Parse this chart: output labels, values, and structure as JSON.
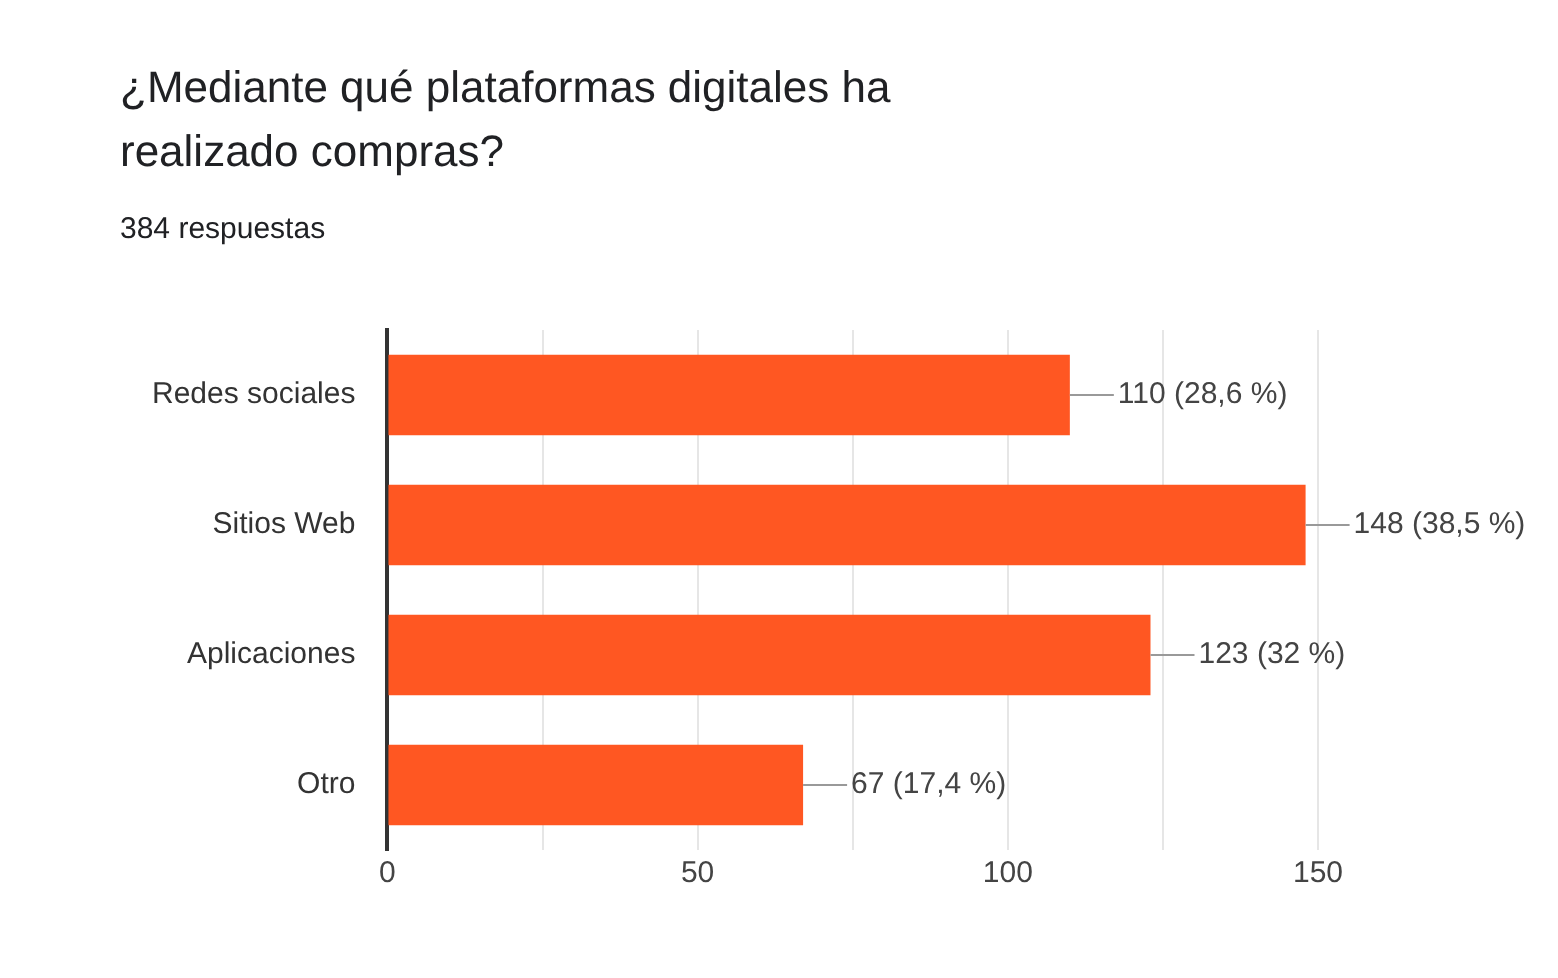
{
  "chart_data": {
    "type": "bar",
    "orientation": "horizontal",
    "title": "¿Mediante qué plataformas digitales ha realizado compras?",
    "subtitle": "384 respuestas",
    "categories": [
      "Redes sociales",
      "Sitios Web",
      "Aplicaciones",
      "Otro"
    ],
    "values": [
      110,
      148,
      123,
      67
    ],
    "color": "#ff5722",
    "value_labels": [
      "110 (28,6 %)",
      "148 (38,5 %)",
      "123 (32 %)",
      "67 (17,4 %)"
    ],
    "xlim": [
      0,
      150
    ],
    "xticks": [
      0,
      {
        "value": 25,
        "label": null
      },
      50,
      {
        "value": 75,
        "label": null
      },
      100,
      {
        "value": 125,
        "label": null
      },
      150
    ],
    "grid": "x",
    "legend": false
  }
}
